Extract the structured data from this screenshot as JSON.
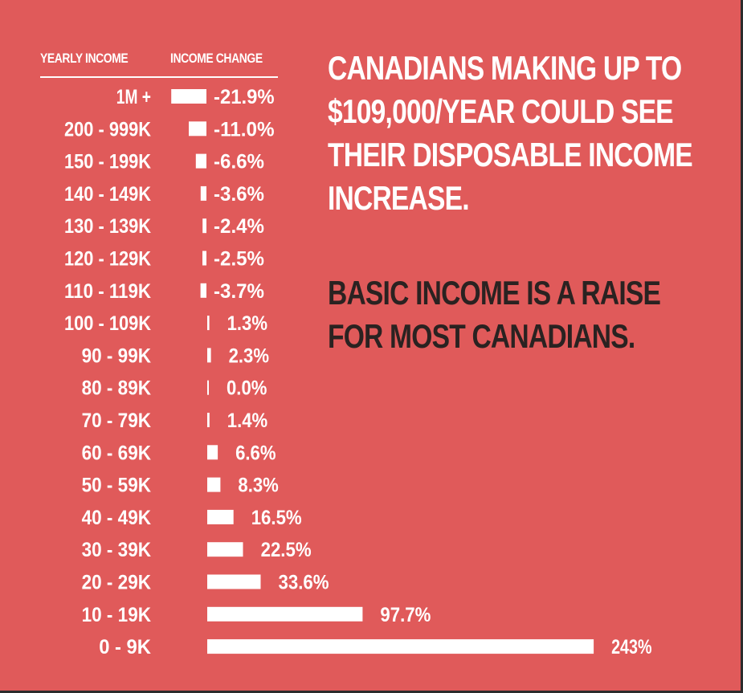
{
  "header": {
    "income_label": "YEARLY INCOME",
    "change_label": "INCOME CHANGE"
  },
  "headline_white": [
    "CANADIANS MAKING UP TO",
    "$109,000/YEAR COULD SEE",
    "THEIR DISPOSABLE INCOME",
    "INCREASE."
  ],
  "headline_dark": [
    "BASIC INCOME IS A RAISE",
    "FOR MOST CANADIANS."
  ],
  "colors": {
    "background": "#e05a5a",
    "bars": "#ffffff",
    "dark_text": "#2a2221"
  },
  "chart_data": {
    "type": "bar",
    "orientation": "horizontal",
    "categories": [
      "1M +",
      "200 - 999K",
      "150 - 199K",
      "140 - 149K",
      "130 - 139K",
      "120 - 129K",
      "110 - 119K",
      "100 - 109K",
      "90 - 99K",
      "80 - 89K",
      "70 - 79K",
      "60 - 69K",
      "50 - 59K",
      "40 - 49K",
      "30 - 39K",
      "20 - 29K",
      "10 - 19K",
      "0 - 9K"
    ],
    "values": [
      -21.9,
      -11.0,
      -6.6,
      -3.6,
      -2.4,
      -2.5,
      -3.7,
      1.3,
      2.3,
      0.0,
      1.4,
      6.6,
      8.3,
      16.5,
      22.5,
      33.6,
      97.7,
      243
    ],
    "value_labels": [
      "-21.9%",
      "-11.0%",
      "-6.6%",
      "-3.6%",
      "-2.4%",
      "-2.5%",
      "-3.7%",
      "1.3%",
      "2.3%",
      "0.0%",
      "1.4%",
      "6.6%",
      "8.3%",
      "16.5%",
      "22.5%",
      "33.6%",
      "97.7%",
      "243%"
    ],
    "xlabel": "INCOME CHANGE",
    "ylabel": "YEARLY INCOME",
    "legend": "none",
    "grid": false
  }
}
